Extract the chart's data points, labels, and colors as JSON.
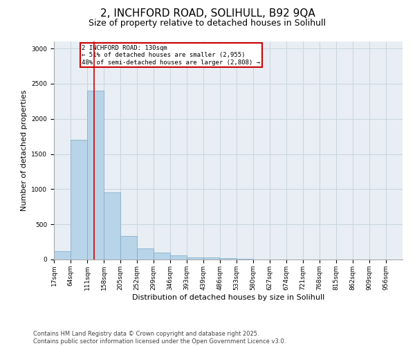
{
  "title": "2, INCHFORD ROAD, SOLIHULL, B92 9QA",
  "subtitle": "Size of property relative to detached houses in Solihull",
  "xlabel": "Distribution of detached houses by size in Solihull",
  "ylabel": "Number of detached properties",
  "bar_color": "#b8d4e8",
  "bar_edge_color": "#7aaac8",
  "grid_color": "#c8d4dc",
  "background_color": "#e8eef4",
  "bins": [
    17,
    64,
    111,
    158,
    205,
    252,
    299,
    346,
    393,
    439,
    486,
    533,
    580,
    627,
    674,
    721,
    768,
    815,
    862,
    909,
    956
  ],
  "bar_heights": [
    120,
    1700,
    2400,
    950,
    330,
    155,
    100,
    60,
    30,
    25,
    20,
    5,
    0,
    0,
    0,
    0,
    0,
    0,
    0,
    0
  ],
  "property_size": 130,
  "red_line_color": "#cc0000",
  "annotation_text": "2 INCHFORD ROAD: 130sqm\n← 51% of detached houses are smaller (2,955)\n48% of semi-detached houses are larger (2,808) →",
  "annotation_box_color": "#ffffff",
  "annotation_box_edge": "#cc0000",
  "ylim": [
    0,
    3100
  ],
  "yticks": [
    0,
    500,
    1000,
    1500,
    2000,
    2500,
    3000
  ],
  "footnote": "Contains HM Land Registry data © Crown copyright and database right 2025.\nContains public sector information licensed under the Open Government Licence v3.0.",
  "title_fontsize": 11,
  "subtitle_fontsize": 9,
  "label_fontsize": 8,
  "tick_fontsize": 6.5,
  "footnote_fontsize": 6
}
